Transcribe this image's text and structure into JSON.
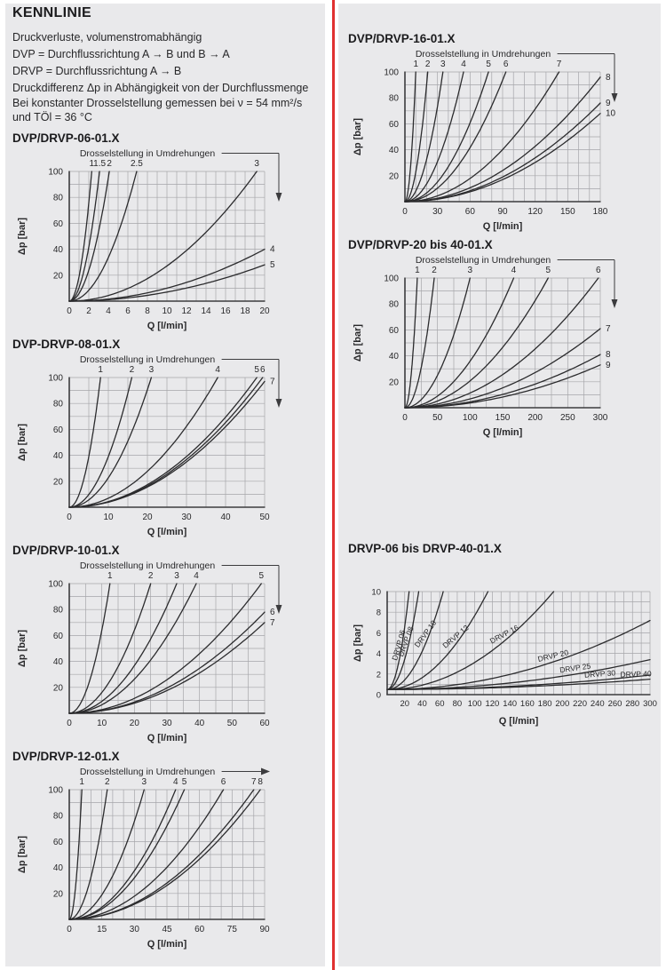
{
  "page": {
    "heading": "KENNLINIE",
    "intro_lines": [
      "Druckverluste, volumenstromabhängig",
      "DVP = Durchflussrichtung A → B und B → A",
      "DRVP = Durchflussrichtung A → B",
      "Druckdifferenz Δp in Abhängigkeit von der Durchflussmenge",
      "Bei konstanter Drosselstellung gemessen bei ν = 54 mm²/s",
      "und TÖl = 36 °C"
    ]
  },
  "colors": {
    "red_divider": "#e03030",
    "grid": "#a6a6aa",
    "axis": "#3c3c3e",
    "curve": "#2b2b2d",
    "text": "#28282a",
    "panel_bg": "#e9e9eb"
  },
  "chart_data": [
    {
      "type": "line",
      "title": "DVP/DRVP-06-01.X",
      "legend": "Drosselstellung in Umdrehungen",
      "xlabel": "Q [l/min]",
      "ylabel": "Δp [bar]",
      "layout": "std",
      "arrow": "down",
      "xlim": [
        0,
        20
      ],
      "ylim": [
        0,
        100
      ],
      "x_minor": 1,
      "y_minor": 10,
      "xticks": [
        0,
        2,
        4,
        6,
        8,
        10,
        12,
        14,
        16,
        18,
        20
      ],
      "yticks": [
        20,
        40,
        60,
        80,
        100
      ],
      "curves": [
        {
          "label": "1",
          "at": [
            2.3,
            100
          ]
        },
        {
          "label": "1.5",
          "at": [
            3.1,
            100
          ]
        },
        {
          "label": "2",
          "at": [
            4.1,
            100
          ]
        },
        {
          "label": "2.5",
          "at": [
            6.9,
            100
          ]
        },
        {
          "label": "3",
          "at": [
            19.2,
            100
          ]
        },
        {
          "label": "4",
          "at": [
            20,
            40
          ]
        },
        {
          "label": "5",
          "at": [
            20,
            28
          ]
        }
      ]
    },
    {
      "type": "line",
      "title": "DVP-DRVP-08-01.X",
      "legend": "Drosselstellung in Umdrehungen",
      "xlabel": "Q [l/min]",
      "ylabel": "Δp [bar]",
      "layout": "std",
      "arrow": "down",
      "xlim": [
        0,
        50
      ],
      "ylim": [
        0,
        100
      ],
      "x_minor": 5,
      "y_minor": 10,
      "xticks": [
        0,
        10,
        20,
        30,
        40,
        50
      ],
      "yticks": [
        20,
        40,
        60,
        80,
        100
      ],
      "curves": [
        {
          "label": "1",
          "at": [
            8,
            100
          ]
        },
        {
          "label": "2",
          "at": [
            16,
            100
          ]
        },
        {
          "label": "3",
          "at": [
            21,
            100
          ]
        },
        {
          "label": "4",
          "at": [
            38,
            100
          ]
        },
        {
          "label": "5",
          "at": [
            48,
            100
          ]
        },
        {
          "label": "6",
          "at": [
            49.5,
            100
          ]
        },
        {
          "label": "7",
          "at": [
            50,
            97
          ]
        }
      ]
    },
    {
      "type": "line",
      "title": "DVP/DRVP-10-01.X",
      "legend": "Drosselstellung in Umdrehungen",
      "xlabel": "Q [l/min]",
      "ylabel": "Δp [bar]",
      "layout": "std",
      "arrow": "down",
      "xlim": [
        0,
        60
      ],
      "ylim": [
        0,
        100
      ],
      "x_minor": 5,
      "y_minor": 10,
      "xticks": [
        0,
        10,
        20,
        30,
        40,
        50,
        60
      ],
      "yticks": [
        20,
        40,
        60,
        80,
        100
      ],
      "curves": [
        {
          "label": "1",
          "at": [
            12.5,
            100
          ]
        },
        {
          "label": "2",
          "at": [
            25,
            100
          ]
        },
        {
          "label": "3",
          "at": [
            33,
            100
          ]
        },
        {
          "label": "4",
          "at": [
            39,
            100
          ]
        },
        {
          "label": "5",
          "at": [
            59,
            100
          ]
        },
        {
          "label": "6",
          "at": [
            60,
            78
          ]
        },
        {
          "label": "7",
          "at": [
            60,
            70
          ]
        }
      ]
    },
    {
      "type": "line",
      "title": "DVP/DRVP-12-01.X",
      "legend": "Drosselstellung in Umdrehungen",
      "xlabel": "Q [l/min]",
      "ylabel": "Δp [bar]",
      "layout": "std",
      "arrow": "right",
      "xlim": [
        0,
        90
      ],
      "ylim": [
        0,
        100
      ],
      "x_minor": 5,
      "y_minor": 10,
      "xticks": [
        0,
        15,
        30,
        45,
        60,
        75,
        90
      ],
      "yticks": [
        20,
        40,
        60,
        80,
        100
      ],
      "curves": [
        {
          "label": "1",
          "at": [
            5.8,
            100
          ]
        },
        {
          "label": "2",
          "at": [
            17.5,
            100
          ]
        },
        {
          "label": "3",
          "at": [
            34.5,
            100
          ]
        },
        {
          "label": "4",
          "at": [
            49,
            100
          ]
        },
        {
          "label": "5",
          "at": [
            53,
            100
          ]
        },
        {
          "label": "6",
          "at": [
            71,
            100
          ]
        },
        {
          "label": "7",
          "at": [
            85,
            100
          ]
        },
        {
          "label": "8",
          "at": [
            88,
            100
          ]
        }
      ]
    },
    {
      "type": "line",
      "title": "DVP/DRVP-16-01.X",
      "legend": "Drosselstellung in Umdrehungen",
      "xlabel": "Q [l/min]",
      "ylabel": "Δp [bar]",
      "layout": "std",
      "arrow": "down",
      "xlim": [
        0,
        180
      ],
      "ylim": [
        0,
        100
      ],
      "x_minor": 10,
      "y_minor": 10,
      "xticks": [
        0,
        30,
        60,
        90,
        120,
        150,
        180
      ],
      "yticks": [
        20,
        40,
        60,
        80,
        100
      ],
      "curves": [
        {
          "label": "1",
          "at": [
            10,
            100
          ]
        },
        {
          "label": "2",
          "at": [
            21,
            100
          ]
        },
        {
          "label": "3",
          "at": [
            35,
            100
          ]
        },
        {
          "label": "4",
          "at": [
            54,
            100
          ]
        },
        {
          "label": "5",
          "at": [
            77,
            100
          ]
        },
        {
          "label": "6",
          "at": [
            93,
            100
          ]
        },
        {
          "label": "7",
          "at": [
            142,
            100
          ]
        },
        {
          "label": "8",
          "at": [
            180,
            96
          ]
        },
        {
          "label": "9",
          "at": [
            180,
            76
          ]
        },
        {
          "label": "10",
          "at": [
            180,
            68
          ]
        }
      ]
    },
    {
      "type": "line",
      "title": "DVP/DRVP-20 bis 40-01.X",
      "legend": "Drosselstellung in Umdrehungen",
      "xlabel": "Q [l/min]",
      "ylabel": "Δp [bar]",
      "layout": "std",
      "arrow": "down",
      "xlim": [
        0,
        300
      ],
      "ylim": [
        0,
        100
      ],
      "x_minor": 25,
      "y_minor": 10,
      "xticks": [
        0,
        50,
        100,
        150,
        200,
        250,
        300
      ],
      "yticks": [
        20,
        40,
        60,
        80,
        100
      ],
      "curves": [
        {
          "label": "1",
          "at": [
            19,
            100
          ]
        },
        {
          "label": "2",
          "at": [
            45,
            100
          ]
        },
        {
          "label": "3",
          "at": [
            100,
            100
          ]
        },
        {
          "label": "4",
          "at": [
            167,
            100
          ]
        },
        {
          "label": "5",
          "at": [
            220,
            100
          ]
        },
        {
          "label": "6",
          "at": [
            297,
            100
          ]
        },
        {
          "label": "7",
          "at": [
            300,
            61
          ]
        },
        {
          "label": "8",
          "at": [
            300,
            41
          ]
        },
        {
          "label": "9",
          "at": [
            300,
            33
          ]
        }
      ]
    },
    {
      "type": "line",
      "title": "DRVP-06 bis DRVP-40-01.X",
      "legend": "",
      "xlabel": "Q [l/min]",
      "ylabel": "Δp [bar]",
      "layout": "wide",
      "arrow": "none",
      "xlim": [
        0,
        300
      ],
      "ylim": [
        0,
        10
      ],
      "x_minor": 10,
      "y_minor": 1,
      "xticks": [
        20,
        40,
        60,
        80,
        100,
        120,
        140,
        160,
        180,
        200,
        220,
        240,
        260,
        280,
        300
      ],
      "yticks": [
        0,
        2,
        4,
        6,
        8,
        10
      ],
      "y_offset": 0.5,
      "curves": [
        {
          "label": "DRVP 06",
          "at": [
            25,
            10
          ],
          "label_x": 16,
          "label_angle": -74
        },
        {
          "label": "DRVP 08",
          "at": [
            36,
            10
          ],
          "label_x": 24,
          "label_angle": -70
        },
        {
          "label": "DRVP 10",
          "at": [
            64,
            10
          ],
          "label_x": 46,
          "label_angle": -54
        },
        {
          "label": "DRVP 12",
          "at": [
            115,
            10
          ],
          "label_x": 80,
          "label_angle": -40
        },
        {
          "label": "DRVP 16",
          "at": [
            190,
            10
          ],
          "label_x": 135,
          "label_angle": -28
        },
        {
          "label": "DRVP 20",
          "at": [
            300,
            7.2
          ],
          "label_x": 190,
          "label_angle": -13
        },
        {
          "label": "DRVP 25",
          "at": [
            300,
            3.4
          ],
          "label_x": 215,
          "label_angle": -8
        },
        {
          "label": "DRVP 30",
          "at": [
            300,
            1.9
          ],
          "label_x": 243,
          "label_angle": -4
        },
        {
          "label": "DRVP 40",
          "at": [
            300,
            1.5
          ],
          "label_x": 284,
          "label_angle": -2
        }
      ]
    }
  ]
}
